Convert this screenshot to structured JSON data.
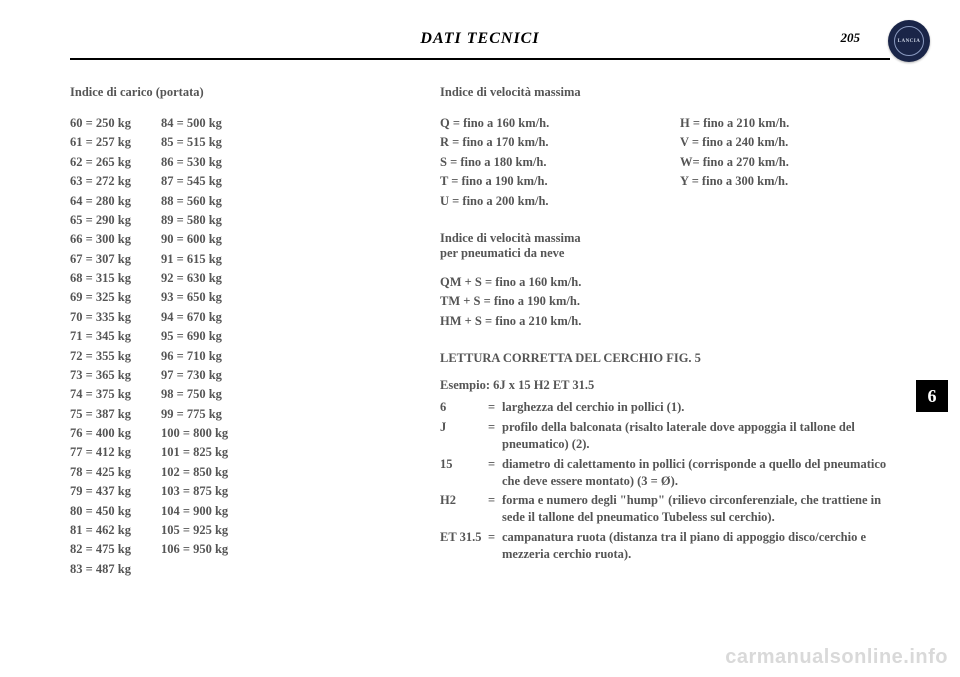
{
  "header": {
    "title": "DATI TECNICI",
    "page_number": "205",
    "logo_text": "LANCIA"
  },
  "side_tab": "6",
  "watermark": "carmanualsonline.info",
  "load_index": {
    "title": "Indice di carico (portata)",
    "col1": [
      "60 = 250 kg",
      "61 = 257 kg",
      "62 = 265 kg",
      "63 = 272 kg",
      "64 = 280 kg",
      "65 = 290 kg",
      "66 = 300 kg",
      "67 = 307 kg",
      "68 = 315 kg",
      "69 = 325 kg",
      "70 = 335 kg",
      "71 = 345 kg",
      "72 = 355 kg",
      "73 = 365 kg",
      "74 = 375 kg",
      "75 = 387 kg",
      "76 = 400 kg",
      "77 = 412 kg",
      "78 = 425 kg",
      "79 = 437 kg",
      "80 = 450 kg",
      "81 = 462 kg",
      "82 = 475 kg",
      "83 = 487 kg"
    ],
    "col2": [
      "84 = 500 kg",
      "85 = 515 kg",
      "86 = 530 kg",
      "87 = 545 kg",
      "88 = 560 kg",
      "89 = 580 kg",
      "90 = 600 kg",
      "91 = 615 kg",
      "92 = 630 kg",
      "93 = 650 kg",
      "94 = 670 kg",
      "95 = 690 kg",
      "96 = 710 kg",
      "97 = 730 kg",
      "98 = 750 kg",
      "99 = 775 kg",
      "100 = 800 kg",
      "101 = 825 kg",
      "102 = 850 kg",
      "103 = 875 kg",
      "104 = 900 kg",
      "105 = 925 kg",
      "106 = 950 kg"
    ]
  },
  "speed_index": {
    "title": "Indice di velocità massima",
    "items_left": [
      "Q =  fino a 160 km/h.",
      "R =  fino a 170 km/h.",
      "S =  fino a 180 km/h.",
      "T =  fino a 190 km/h.",
      "U =  fino a 200 km/h."
    ],
    "items_right": [
      "H =  fino a 210 km/h.",
      "V =  fino a 240 km/h.",
      "W=  fino a 270 km/h.",
      "Y =  fino a 300 km/h."
    ]
  },
  "snow_index": {
    "title_line1": "Indice di velocità massima",
    "title_line2": "per pneumatici da neve",
    "items": [
      "QM + S = fino a 160 km/h.",
      "TM + S = fino a 190 km/h.",
      "HM + S = fino a 210 km/h."
    ]
  },
  "rim": {
    "title": "LETTURA CORRETTA DEL CERCHIO fig. 5",
    "example": "Esempio: 6J x 15 H2 ET 31.5",
    "defs": [
      {
        "k": "6",
        "v": "larghezza del cerchio in pollici (1)."
      },
      {
        "k": "J",
        "v": "profilo della balconata (risalto laterale dove appoggia il tallone del pneumatico) (2)."
      },
      {
        "k": "15",
        "v": "diametro di calettamento in pollici (corrisponde a quello del pneumatico che deve essere montato) (3 = Ø)."
      },
      {
        "k": "H2",
        "v": "forma e numero degli \"hump\" (rilievo circonferenziale, che trattiene in sede il tallone del pneumatico Tubeless sul cerchio)."
      },
      {
        "k": "ET 31.5",
        "v": "campanatura ruota (distanza tra il piano di appoggio disco/cerchio e mezzeria cerchio ruota)."
      }
    ]
  }
}
